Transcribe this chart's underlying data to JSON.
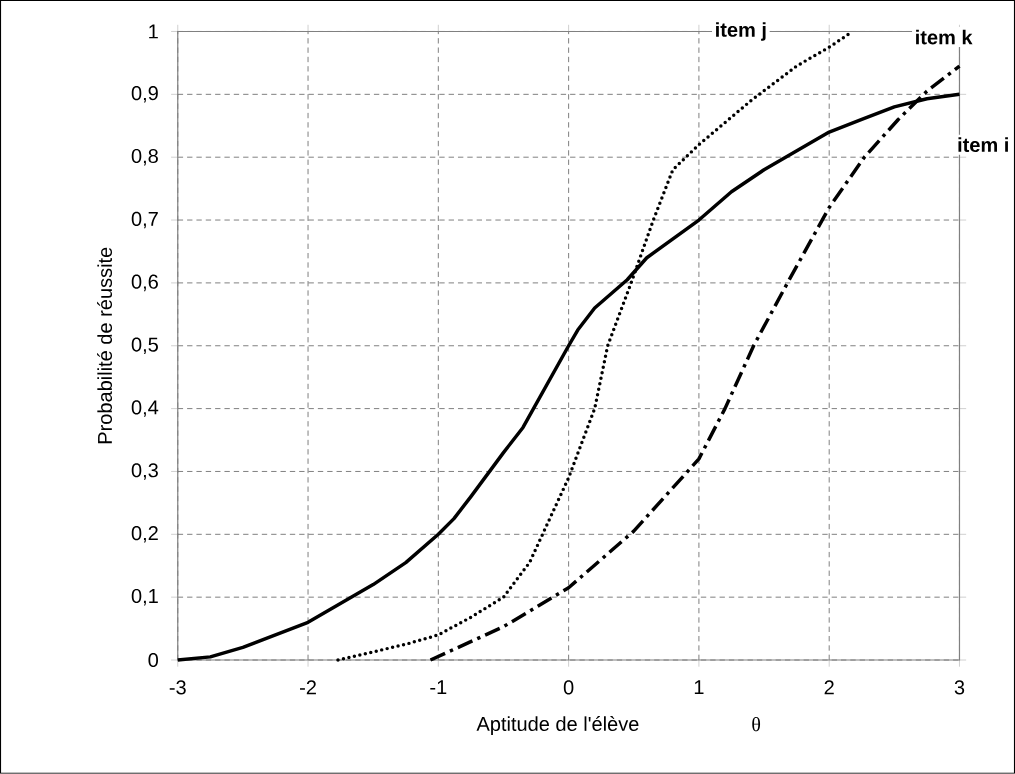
{
  "chart_data": {
    "type": "line",
    "xlabel": "Aptitude de l'élève",
    "ylabel": "Probabilité de réussite",
    "annotations": [
      "θ"
    ],
    "xlim": [
      -3,
      3
    ],
    "ylim": [
      0,
      1
    ],
    "xticks": [
      -3,
      -2,
      -1,
      0,
      1,
      2,
      3
    ],
    "yticks": [
      0,
      {
        "value": 0.1,
        "label": "0,1"
      },
      {
        "value": 0.2,
        "label": "0,2"
      },
      {
        "value": 0.3,
        "label": "0,3"
      },
      {
        "value": 0.4,
        "label": "0,4"
      },
      {
        "value": 0.5,
        "label": "0,5"
      },
      {
        "value": 0.6,
        "label": "0,6"
      },
      {
        "value": 0.7,
        "label": "0,7"
      },
      {
        "value": 0.8,
        "label": "0,8"
      },
      {
        "value": 0.9,
        "label": "0,9"
      },
      1
    ],
    "grid": true,
    "legend": false,
    "marker": "none",
    "series": [
      {
        "name": "item i",
        "color": "#000000",
        "line_style": "solid",
        "x": [
          -3,
          -2.75,
          -2.5,
          -2,
          -1.5,
          -1.25,
          -1,
          -0.88,
          -0.75,
          -0.5,
          -0.35,
          0,
          0.07,
          0.2,
          0.45,
          0.6,
          1,
          1.25,
          1.5,
          1.75,
          2,
          2.25,
          2.5,
          2.75,
          3
        ],
        "values": [
          0,
          0.005,
          0.02,
          0.06,
          0.12,
          0.155,
          0.2,
          0.225,
          0.26,
          0.33,
          0.37,
          0.5,
          0.525,
          0.56,
          0.605,
          0.64,
          0.7,
          0.745,
          0.78,
          0.81,
          0.84,
          0.86,
          0.88,
          0.893,
          0.9
        ]
      },
      {
        "name": "item j",
        "color": "#000000",
        "line_style": "dotted",
        "x": [
          -1.77,
          -1.25,
          -1,
          -0.75,
          -0.5,
          -0.3,
          -0.2,
          -0.1,
          0,
          0.2,
          0.3,
          0.48,
          0.65,
          0.8,
          1,
          1.4,
          1.75,
          2,
          2.18
        ],
        "values": [
          0,
          0.025,
          0.04,
          0.068,
          0.1,
          0.155,
          0.2,
          0.245,
          0.29,
          0.4,
          0.5,
          0.6,
          0.7,
          0.78,
          0.82,
          0.89,
          0.945,
          0.975,
          1
        ]
      },
      {
        "name": "item k",
        "color": "#000000",
        "line_style": "dashdot",
        "x": [
          -1.06,
          -0.5,
          0,
          0.5,
          1,
          1.2,
          1.42,
          1.68,
          2,
          2.27,
          2.53,
          2.75,
          3
        ],
        "values": [
          0,
          0.053,
          0.115,
          0.205,
          0.32,
          0.4,
          0.5,
          0.6,
          0.72,
          0.8,
          0.86,
          0.905,
          0.945
        ]
      }
    ]
  }
}
